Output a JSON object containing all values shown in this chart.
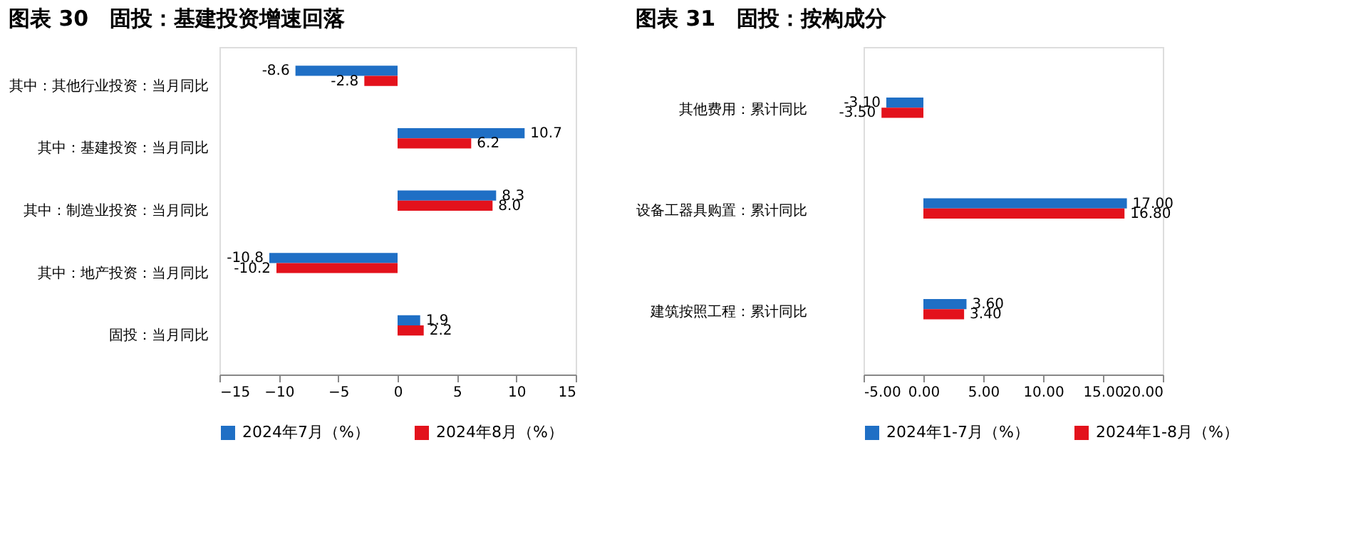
{
  "chart_data": [
    {
      "type": "bar",
      "orientation": "horizontal",
      "title": "图表 30　固投：基建投资增速回落",
      "categories": [
        "其中：其他行业投资：当月同比",
        "其中：基建投资：当月同比",
        "其中：制造业投资：当月同比",
        "其中：地产投资：当月同比",
        "固投：当月同比"
      ],
      "series": [
        {
          "name": "2024年7月（%）",
          "color": "#1f6fc5",
          "values": [
            -8.6,
            10.7,
            8.3,
            -10.8,
            1.9
          ],
          "value_labels": [
            "-8.6",
            "10.7",
            "8.3",
            "-10.8",
            "1.9"
          ]
        },
        {
          "name": "2024年8月（%）",
          "color": "#e3121c",
          "values": [
            -2.8,
            6.2,
            8.0,
            -10.2,
            2.2
          ],
          "value_labels": [
            "-2.8",
            "6.2",
            "8.0",
            "-10.2",
            "2.2"
          ]
        }
      ],
      "xlim": [
        -15,
        15
      ],
      "xticks": [
        -15,
        -10,
        -5,
        0,
        5,
        10,
        15
      ],
      "legend": "bottom",
      "grid": false
    },
    {
      "type": "bar",
      "orientation": "horizontal",
      "title": "图表 31　固投：按构成分",
      "categories": [
        "其他费用：累计同比",
        "设备工器具购置：累计同比",
        "建筑按照工程：累计同比"
      ],
      "series": [
        {
          "name": "2024年1-7月（%）",
          "color": "#1f6fc5",
          "values": [
            -3.1,
            17.0,
            3.6
          ],
          "value_labels": [
            "-3.10",
            "17.00",
            "3.60"
          ]
        },
        {
          "name": "2024年1-8月（%）",
          "color": "#e3121c",
          "values": [
            -3.5,
            16.8,
            3.4
          ],
          "value_labels": [
            "-3.50",
            "16.80",
            "3.40"
          ]
        }
      ],
      "xlim": [
        -5,
        20
      ],
      "xticks": [
        {
          "value": -5,
          "label": "-5.00"
        },
        {
          "value": 0,
          "label": "0.00"
        },
        {
          "value": 5,
          "label": "5.00"
        },
        {
          "value": 10,
          "label": "10.00"
        },
        {
          "value": 15,
          "label": "15.00"
        },
        {
          "value": 20,
          "label": "20.00"
        }
      ],
      "legend": "bottom",
      "grid": false
    }
  ]
}
